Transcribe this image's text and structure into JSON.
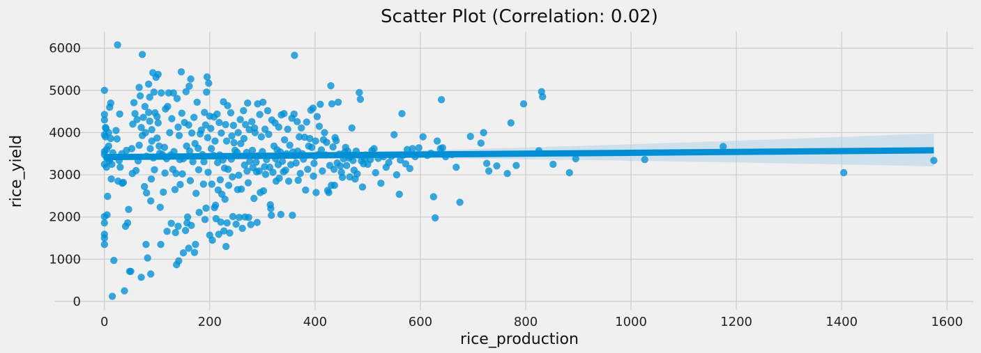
{
  "chart_data": {
    "type": "scatter",
    "title": "Scatter Plot (Correlation: 0.02)",
    "xlabel": "rice_production",
    "ylabel": "rice_yield",
    "xlim": [
      -95,
      1650
    ],
    "ylim": [
      -200,
      6400
    ],
    "xticks": [
      0,
      200,
      400,
      600,
      800,
      1000,
      1200,
      1400,
      1600
    ],
    "yticks": [
      0,
      1000,
      2000,
      3000,
      4000,
      5000,
      6000
    ],
    "grid": true,
    "legend": "none",
    "colors": {
      "background": "#f0f0f0",
      "grid": "#cbcbcb",
      "points": "#008fd5",
      "regression_line": "#008fd5",
      "confidence_band": "#a9cfe6"
    },
    "regression": {
      "x_start": 0,
      "x_end": 1575,
      "y_start": 3420,
      "y_end": 3580,
      "ci_upper_end": 3980,
      "ci_lower_end": 3200
    },
    "points": [
      [
        0,
        5000
      ],
      [
        0,
        4430
      ],
      [
        0,
        4300
      ],
      [
        0,
        3950
      ],
      [
        0,
        3550
      ],
      [
        0,
        3480
      ],
      [
        0,
        3250
      ],
      [
        0,
        2010
      ],
      [
        0,
        1860
      ],
      [
        0,
        1590
      ],
      [
        0,
        1500
      ],
      [
        0,
        1350
      ],
      [
        2,
        4120
      ],
      [
        2,
        3900
      ],
      [
        3,
        4100
      ],
      [
        4,
        3600
      ],
      [
        4,
        3400
      ],
      [
        4,
        3180
      ],
      [
        5,
        2050
      ],
      [
        6,
        2490
      ],
      [
        8,
        4000
      ],
      [
        8,
        3680
      ],
      [
        9,
        3330
      ],
      [
        10,
        4600
      ],
      [
        10,
        3380
      ],
      [
        12,
        4700
      ],
      [
        12,
        3860
      ],
      [
        13,
        2900
      ],
      [
        14,
        3250
      ],
      [
        16,
        3520
      ],
      [
        15,
        120
      ],
      [
        18,
        970
      ],
      [
        22,
        4050
      ],
      [
        24,
        3850
      ],
      [
        25,
        6080
      ],
      [
        26,
        2850
      ],
      [
        28,
        3340
      ],
      [
        29,
        4440
      ],
      [
        30,
        3180
      ],
      [
        33,
        3500
      ],
      [
        34,
        2800
      ],
      [
        36,
        2820
      ],
      [
        38,
        250
      ],
      [
        40,
        1780
      ],
      [
        42,
        3580
      ],
      [
        44,
        1860
      ],
      [
        46,
        2180
      ],
      [
        48,
        710
      ],
      [
        50,
        710
      ],
      [
        52,
        3620
      ],
      [
        53,
        3030
      ],
      [
        54,
        4200
      ],
      [
        56,
        4710
      ],
      [
        58,
        4450
      ],
      [
        60,
        3100
      ],
      [
        62,
        4310
      ],
      [
        64,
        3330
      ],
      [
        66,
        3700
      ],
      [
        66,
        5070
      ],
      [
        68,
        4870
      ],
      [
        70,
        4120
      ],
      [
        70,
        570
      ],
      [
        72,
        3930
      ],
      [
        72,
        5850
      ],
      [
        74,
        4360
      ],
      [
        76,
        2720
      ],
      [
        77,
        4620
      ],
      [
        78,
        4000
      ],
      [
        79,
        1350
      ],
      [
        80,
        3440
      ],
      [
        80,
        2570
      ],
      [
        82,
        1030
      ],
      [
        84,
        4480
      ],
      [
        84,
        5150
      ],
      [
        86,
        4840
      ],
      [
        86,
        4270
      ],
      [
        87,
        3620
      ],
      [
        88,
        2380
      ],
      [
        88,
        650
      ],
      [
        89,
        2900
      ],
      [
        90,
        4070
      ],
      [
        90,
        3800
      ],
      [
        92,
        5420
      ],
      [
        93,
        3400
      ],
      [
        94,
        4960
      ],
      [
        95,
        3120
      ],
      [
        96,
        4470
      ],
      [
        98,
        5310
      ],
      [
        100,
        4380
      ],
      [
        100,
        3870
      ],
      [
        102,
        5380
      ],
      [
        102,
        4230
      ],
      [
        104,
        3680
      ],
      [
        105,
        3510
      ],
      [
        106,
        2230
      ],
      [
        107,
        1350
      ],
      [
        108,
        4940
      ],
      [
        110,
        3480
      ],
      [
        112,
        2590
      ],
      [
        114,
        3650
      ],
      [
        115,
        3040
      ],
      [
        116,
        4560
      ],
      [
        118,
        3380
      ],
      [
        119,
        1660
      ],
      [
        120,
        4620
      ],
      [
        122,
        4940
      ],
      [
        124,
        4000
      ],
      [
        126,
        3470
      ],
      [
        127,
        1850
      ],
      [
        128,
        4330
      ],
      [
        130,
        3130
      ],
      [
        131,
        4940
      ],
      [
        132,
        3550
      ],
      [
        134,
        2650
      ],
      [
        135,
        1630
      ],
      [
        136,
        3030
      ],
      [
        137,
        870
      ],
      [
        138,
        4810
      ],
      [
        140,
        4130
      ],
      [
        140,
        1780
      ],
      [
        141,
        960
      ],
      [
        142,
        3930
      ],
      [
        143,
        3360
      ],
      [
        144,
        2770
      ],
      [
        146,
        5440
      ],
      [
        147,
        4460
      ],
      [
        148,
        3020
      ],
      [
        150,
        3380
      ],
      [
        150,
        1150
      ],
      [
        152,
        4240
      ],
      [
        154,
        1680
      ],
      [
        155,
        4970
      ],
      [
        156,
        3680
      ],
      [
        157,
        1860
      ],
      [
        158,
        2000
      ],
      [
        160,
        4180
      ],
      [
        160,
        1260
      ],
      [
        161,
        5100
      ],
      [
        162,
        3560
      ],
      [
        163,
        2860
      ],
      [
        164,
        5270
      ],
      [
        165,
        1800
      ],
      [
        166,
        3990
      ],
      [
        168,
        3310
      ],
      [
        170,
        4360
      ],
      [
        171,
        1160
      ],
      [
        172,
        3740
      ],
      [
        173,
        1350
      ],
      [
        174,
        2560
      ],
      [
        176,
        4720
      ],
      [
        178,
        3630
      ],
      [
        179,
        3120
      ],
      [
        180,
        2110
      ],
      [
        182,
        3970
      ],
      [
        184,
        4060
      ],
      [
        186,
        3480
      ],
      [
        188,
        2780
      ],
      [
        189,
        3310
      ],
      [
        190,
        4480
      ],
      [
        191,
        1940
      ],
      [
        192,
        4180
      ],
      [
        193,
        2210
      ],
      [
        194,
        4960
      ],
      [
        195,
        5320
      ],
      [
        196,
        3880
      ],
      [
        197,
        3060
      ],
      [
        198,
        5170
      ],
      [
        200,
        4390
      ],
      [
        200,
        1570
      ],
      [
        202,
        4100
      ],
      [
        203,
        3620
      ],
      [
        204,
        2780
      ],
      [
        205,
        1450
      ],
      [
        207,
        3460
      ],
      [
        208,
        4370
      ],
      [
        209,
        2220
      ],
      [
        210,
        3800
      ],
      [
        211,
        2280
      ],
      [
        212,
        1960
      ],
      [
        214,
        4440
      ],
      [
        215,
        3290
      ],
      [
        216,
        2640
      ],
      [
        217,
        1590
      ],
      [
        218,
        4240
      ],
      [
        219,
        3470
      ],
      [
        220,
        2880
      ],
      [
        221,
        1880
      ],
      [
        222,
        3990
      ],
      [
        223,
        2540
      ],
      [
        225,
        3350
      ],
      [
        226,
        4730
      ],
      [
        227,
        1670
      ],
      [
        228,
        3160
      ],
      [
        229,
        2420
      ],
      [
        230,
        4190
      ],
      [
        231,
        1300
      ],
      [
        232,
        3800
      ],
      [
        233,
        1860
      ],
      [
        234,
        4640
      ],
      [
        235,
        3130
      ],
      [
        236,
        2750
      ],
      [
        238,
        1620
      ],
      [
        240,
        4470
      ],
      [
        241,
        3370
      ],
      [
        242,
        3920
      ],
      [
        243,
        2950
      ],
      [
        244,
        2010
      ],
      [
        245,
        4170
      ],
      [
        246,
        3760
      ],
      [
        248,
        3580
      ],
      [
        250,
        1830
      ],
      [
        252,
        3530
      ],
      [
        253,
        2650
      ],
      [
        254,
        4000
      ],
      [
        255,
        2990
      ],
      [
        256,
        1990
      ],
      [
        258,
        4310
      ],
      [
        259,
        3740
      ],
      [
        260,
        2660
      ],
      [
        262,
        1730
      ],
      [
        264,
        4520
      ],
      [
        265,
        3860
      ],
      [
        266,
        3230
      ],
      [
        267,
        2000
      ],
      [
        268,
        4190
      ],
      [
        270,
        3530
      ],
      [
        271,
        3090
      ],
      [
        272,
        4700
      ],
      [
        273,
        2810
      ],
      [
        274,
        1990
      ],
      [
        275,
        4070
      ],
      [
        276,
        3320
      ],
      [
        278,
        1820
      ],
      [
        280,
        4260
      ],
      [
        281,
        3580
      ],
      [
        282,
        3170
      ],
      [
        284,
        2440
      ],
      [
        285,
        4110
      ],
      [
        286,
        4000
      ],
      [
        288,
        3300
      ],
      [
        289,
        3070
      ],
      [
        290,
        1870
      ],
      [
        291,
        4680
      ],
      [
        292,
        3450
      ],
      [
        294,
        3090
      ],
      [
        295,
        4430
      ],
      [
        296,
        2580
      ],
      [
        298,
        3900
      ],
      [
        300,
        3550
      ],
      [
        301,
        4720
      ],
      [
        302,
        2620
      ],
      [
        304,
        3190
      ],
      [
        305,
        4080
      ],
      [
        306,
        3010
      ],
      [
        308,
        3360
      ],
      [
        310,
        4520
      ],
      [
        312,
        3960
      ],
      [
        314,
        3180
      ],
      [
        315,
        2290
      ],
      [
        316,
        2200
      ],
      [
        317,
        2040
      ],
      [
        318,
        4300
      ],
      [
        320,
        3060
      ],
      [
        322,
        3680
      ],
      [
        324,
        4230
      ],
      [
        325,
        3380
      ],
      [
        326,
        2850
      ],
      [
        328,
        3590
      ],
      [
        330,
        3240
      ],
      [
        331,
        4130
      ],
      [
        332,
        2920
      ],
      [
        334,
        3540
      ],
      [
        335,
        2060
      ],
      [
        336,
        4420
      ],
      [
        338,
        3320
      ],
      [
        340,
        3070
      ],
      [
        341,
        4450
      ],
      [
        342,
        3830
      ],
      [
        344,
        3110
      ],
      [
        346,
        3500
      ],
      [
        348,
        4080
      ],
      [
        350,
        2850
      ],
      [
        352,
        3700
      ],
      [
        354,
        3240
      ],
      [
        356,
        4340
      ],
      [
        357,
        2040
      ],
      [
        358,
        3540
      ],
      [
        360,
        4440
      ],
      [
        361,
        5830
      ],
      [
        362,
        3450
      ],
      [
        364,
        3280
      ],
      [
        366,
        4260
      ],
      [
        367,
        3560
      ],
      [
        368,
        2870
      ],
      [
        370,
        3900
      ],
      [
        372,
        3030
      ],
      [
        374,
        4110
      ],
      [
        376,
        3500
      ],
      [
        378,
        3370
      ],
      [
        380,
        3890
      ],
      [
        382,
        2640
      ],
      [
        384,
        4250
      ],
      [
        386,
        3130
      ],
      [
        388,
        3680
      ],
      [
        390,
        3860
      ],
      [
        392,
        4530
      ],
      [
        394,
        3650
      ],
      [
        396,
        4580
      ],
      [
        397,
        2970
      ],
      [
        398,
        3270
      ],
      [
        400,
        3440
      ],
      [
        401,
        3800
      ],
      [
        402,
        2580
      ],
      [
        404,
        4380
      ],
      [
        406,
        3480
      ],
      [
        408,
        4150
      ],
      [
        410,
        4670
      ],
      [
        412,
        3590
      ],
      [
        414,
        3090
      ],
      [
        416,
        3830
      ],
      [
        418,
        4000
      ],
      [
        420,
        3470
      ],
      [
        422,
        3770
      ],
      [
        424,
        2630
      ],
      [
        426,
        2580
      ],
      [
        428,
        3220
      ],
      [
        430,
        5110
      ],
      [
        431,
        2750
      ],
      [
        432,
        4680
      ],
      [
        434,
        3660
      ],
      [
        436,
        3130
      ],
      [
        437,
        2750
      ],
      [
        438,
        3880
      ],
      [
        440,
        3810
      ],
      [
        442,
        3280
      ],
      [
        444,
        4720
      ],
      [
        446,
        3490
      ],
      [
        448,
        3210
      ],
      [
        450,
        3060
      ],
      [
        452,
        2940
      ],
      [
        454,
        3380
      ],
      [
        456,
        3530
      ],
      [
        458,
        3650
      ],
      [
        460,
        3220
      ],
      [
        462,
        3560
      ],
      [
        464,
        3400
      ],
      [
        466,
        2950
      ],
      [
        468,
        3440
      ],
      [
        470,
        4110
      ],
      [
        472,
        3340
      ],
      [
        474,
        3110
      ],
      [
        476,
        2900
      ],
      [
        478,
        3560
      ],
      [
        480,
        3020
      ],
      [
        482,
        3470
      ],
      [
        484,
        4950
      ],
      [
        486,
        4790
      ],
      [
        488,
        3330
      ],
      [
        490,
        2710
      ],
      [
        492,
        3260
      ],
      [
        494,
        3380
      ],
      [
        496,
        3470
      ],
      [
        500,
        3250
      ],
      [
        505,
        3360
      ],
      [
        508,
        3570
      ],
      [
        512,
        3620
      ],
      [
        515,
        3050
      ],
      [
        520,
        3390
      ],
      [
        525,
        2800
      ],
      [
        530,
        3430
      ],
      [
        535,
        3180
      ],
      [
        540,
        3290
      ],
      [
        545,
        3440
      ],
      [
        550,
        3950
      ],
      [
        555,
        3000
      ],
      [
        560,
        2540
      ],
      [
        562,
        3350
      ],
      [
        565,
        4450
      ],
      [
        568,
        3470
      ],
      [
        572,
        3260
      ],
      [
        575,
        3600
      ],
      [
        580,
        3150
      ],
      [
        585,
        3620
      ],
      [
        590,
        3430
      ],
      [
        597,
        3640
      ],
      [
        605,
        3900
      ],
      [
        613,
        3460
      ],
      [
        620,
        3510
      ],
      [
        625,
        2480
      ],
      [
        628,
        1980
      ],
      [
        632,
        3800
      ],
      [
        638,
        3620
      ],
      [
        640,
        4780
      ],
      [
        642,
        3640
      ],
      [
        648,
        3430
      ],
      [
        660,
        3480
      ],
      [
        668,
        3180
      ],
      [
        675,
        2350
      ],
      [
        695,
        3910
      ],
      [
        715,
        3750
      ],
      [
        720,
        4000
      ],
      [
        726,
        3270
      ],
      [
        730,
        3090
      ],
      [
        745,
        3210
      ],
      [
        765,
        3030
      ],
      [
        772,
        4230
      ],
      [
        782,
        3220
      ],
      [
        796,
        4680
      ],
      [
        825,
        3570
      ],
      [
        830,
        4970
      ],
      [
        832,
        4850
      ],
      [
        852,
        3250
      ],
      [
        883,
        3050
      ],
      [
        895,
        3380
      ],
      [
        1026,
        3360
      ],
      [
        1175,
        3670
      ],
      [
        1404,
        3050
      ],
      [
        1575,
        3340
      ]
    ]
  }
}
